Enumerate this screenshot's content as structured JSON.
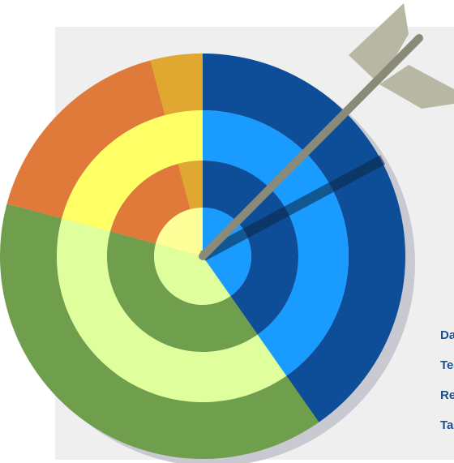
{
  "labels": [
    "Dark Blue",
    "Teal",
    "Red",
    "Tan"
  ],
  "colors": {
    "label_text": "#1d4f8c",
    "shadow": "#c9c9d2",
    "arrow_shaft": "#8a8a78",
    "arrow_fletch": "#b7b7a4",
    "arrow_shadow": "#0b2a4a",
    "sectors": {
      "orange": {
        "outer": "#e07a3a",
        "inner": "#ffff66",
        "mid": "#e07a3a",
        "center": "#ffff99",
        "top": "#e0a830"
      },
      "green": {
        "outer": "#6f9e4c",
        "inner": "#deff9c",
        "mid": "#6f9e4c",
        "center": "#deff9c"
      },
      "blue": {
        "outer": "#0e4d98",
        "inner": "#1a9bff",
        "mid": "#0e4d98",
        "center": "#1a9bff"
      }
    }
  }
}
